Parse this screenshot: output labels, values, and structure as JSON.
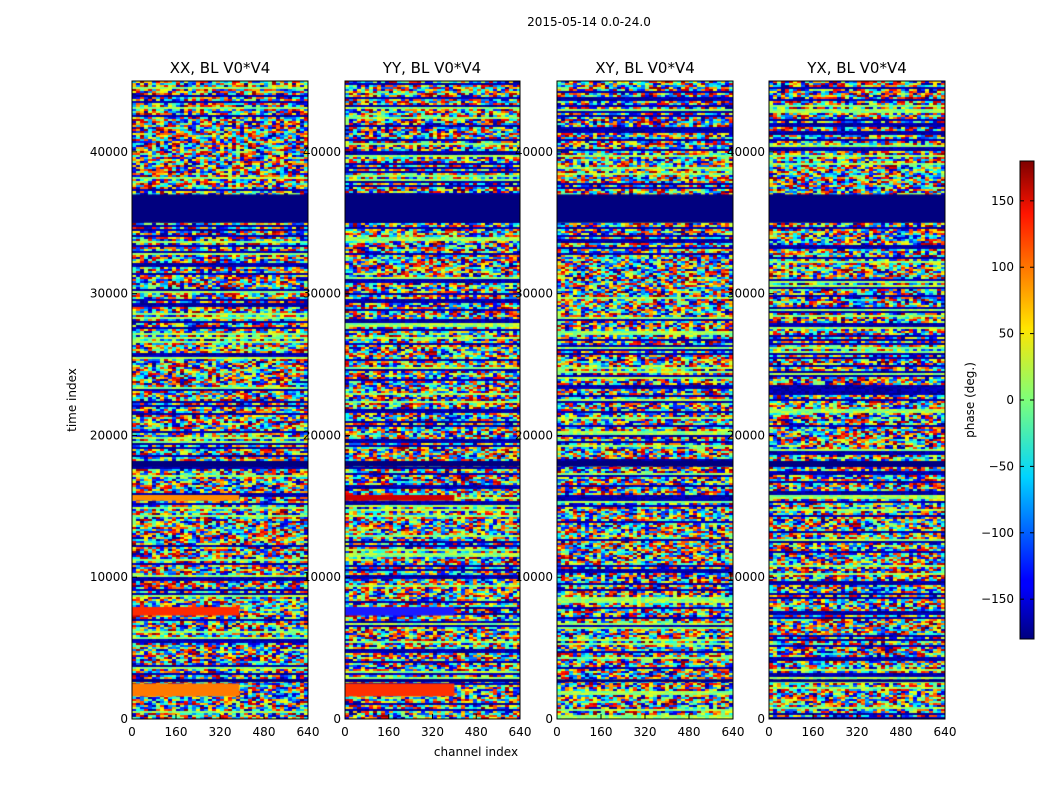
{
  "chart_data": {
    "type": "heatmap",
    "suptitle": "2015-05-14 0.0-24.0",
    "xlabel": "channel index",
    "ylabel": "time index",
    "xlim": [
      0,
      640
    ],
    "ylim": [
      0,
      45000
    ],
    "x_ticks": [
      0,
      160,
      320,
      480,
      640
    ],
    "x_tick_labels": [
      "0",
      "160",
      "320",
      "480",
      "640"
    ],
    "y_ticks": [
      0,
      10000,
      20000,
      30000,
      40000
    ],
    "y_tick_labels": [
      "0",
      "10000",
      "20000",
      "30000",
      "40000"
    ],
    "panels": [
      {
        "title": "XX, BL V0*V4",
        "id": "xx"
      },
      {
        "title": "YY, BL V0*V4",
        "id": "yy"
      },
      {
        "title": "XY, BL V0*V4",
        "id": "xy"
      },
      {
        "title": "YX, BL V0*V4",
        "id": "yx"
      }
    ],
    "colorbar": {
      "label": "phase (deg.)",
      "range": [
        -180,
        180
      ],
      "colormap": "jet",
      "ticks": [
        150,
        100,
        50,
        0,
        -50,
        -100,
        -150
      ],
      "tick_labels": [
        "150",
        "100",
        "50",
        "0",
        "−50",
        "−100",
        "−150"
      ]
    },
    "dark_bands": [
      {
        "y0": 35000,
        "y1": 37000
      },
      {
        "y0": 17800,
        "y1": 18200
      },
      {
        "y0": 2600,
        "y1": 2800
      }
    ],
    "colored_bands": [
      {
        "panel": "xx",
        "y0": 1600,
        "y1": 2500,
        "x1": 390,
        "color": "#ff7a00"
      },
      {
        "panel": "xx",
        "y0": 7300,
        "y1": 7900,
        "x1": 390,
        "color": "#ff2a00"
      },
      {
        "panel": "xx",
        "y0": 15400,
        "y1": 15800,
        "x1": 390,
        "color": "#ff8c00"
      },
      {
        "panel": "yy",
        "y0": 1600,
        "y1": 2500,
        "x1": 400,
        "color": "#ff3000"
      },
      {
        "panel": "yy",
        "y0": 7300,
        "y1": 7900,
        "x1": 400,
        "color": "#1a1aff"
      },
      {
        "panel": "yy",
        "y0": 15400,
        "y1": 15800,
        "x1": 400,
        "color": "#cc0000"
      }
    ]
  }
}
